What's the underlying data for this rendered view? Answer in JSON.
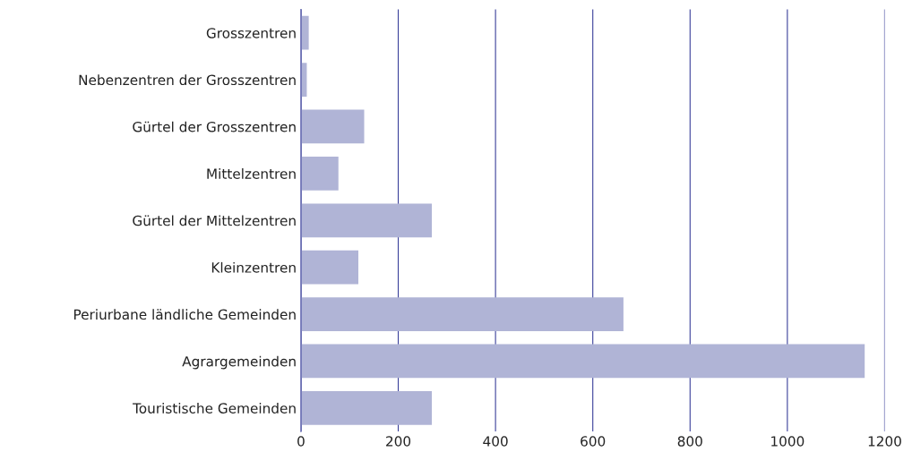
{
  "chart_data": {
    "type": "bar",
    "orientation": "horizontal",
    "categories": [
      "Grosszentren",
      "Nebenzentren der Grosszentren",
      "Gürtel der Grosszentren",
      "Mittelzentren",
      "Gürtel der Mittelzentren",
      "Kleinzentren",
      "Periurbane ländliche Gemeinden",
      "Agrargemeinden",
      "Touristische Gemeinden"
    ],
    "values": [
      16,
      12,
      130,
      77,
      269,
      118,
      663,
      1159,
      269
    ],
    "color": "#b0b4d6",
    "xlim": [
      0,
      1200
    ],
    "xticks": [
      0,
      200,
      400,
      600,
      800,
      1000,
      1200
    ],
    "grid": "x"
  }
}
